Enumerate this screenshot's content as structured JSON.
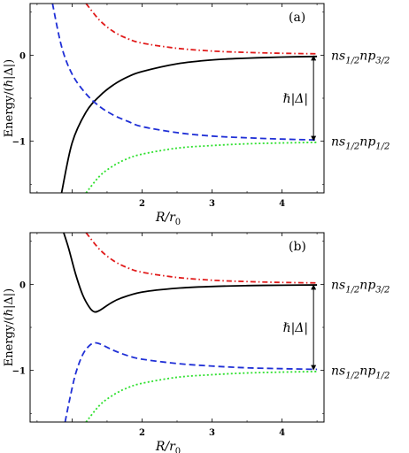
{
  "figure": {
    "ylabel": "Energy/(ℏ|Δ|)",
    "xlabel": "R/r",
    "xlabel_sub": "0"
  },
  "chart_data": [
    {
      "type": "line",
      "panel_label": "(a)",
      "xlim": [
        0.4,
        4.6
      ],
      "ylim": [
        -1.6,
        0.6
      ],
      "xticks": [
        1,
        2,
        3,
        4
      ],
      "xtick_labels": [
        "",
        "2",
        "3",
        "4"
      ],
      "yticks": [
        -1,
        0
      ],
      "ytick_labels": [
        "−1",
        "0"
      ],
      "xlabel": "R/r",
      "xlabel_sub": "0",
      "gap_label": "ℏ|Δ|",
      "level_labels": {
        "upper": {
          "base": "ns",
          "sub1": "1/2",
          "mid": "np",
          "sub2": "3/2"
        },
        "lower": {
          "base": "ns",
          "sub1": "1/2",
          "mid": "np",
          "sub2": "1/2"
        }
      },
      "series": [
        {
          "style": "solid",
          "color": "#000000",
          "x": [
            0.85,
            1.0,
            1.2,
            1.4,
            1.6,
            1.8,
            2.0,
            2.5,
            3.0,
            3.5,
            4.0,
            4.5
          ],
          "y": [
            -1.6,
            -1.02,
            -0.66,
            -0.47,
            -0.34,
            -0.25,
            -0.19,
            -0.1,
            -0.055,
            -0.035,
            -0.022,
            -0.015
          ]
        },
        {
          "style": "dashdot",
          "color": "#e11b1b",
          "x": [
            1.2,
            1.4,
            1.6,
            1.8,
            2.0,
            2.5,
            3.0,
            3.5,
            4.0,
            4.5
          ],
          "y": [
            0.6,
            0.4,
            0.27,
            0.19,
            0.14,
            0.08,
            0.048,
            0.032,
            0.022,
            0.016
          ]
        },
        {
          "style": "dashed",
          "color": "#1f2fd6",
          "x": [
            0.72,
            0.85,
            1.0,
            1.2,
            1.4,
            1.6,
            1.8,
            2.0,
            2.5,
            3.0,
            3.5,
            4.0,
            4.5
          ],
          "y": [
            0.6,
            0.1,
            -0.22,
            -0.45,
            -0.6,
            -0.7,
            -0.77,
            -0.83,
            -0.9,
            -0.94,
            -0.96,
            -0.975,
            -0.985
          ]
        },
        {
          "style": "dotted",
          "color": "#2fe02f",
          "x": [
            1.2,
            1.4,
            1.6,
            1.8,
            2.0,
            2.5,
            3.0,
            3.5,
            4.0,
            4.5
          ],
          "y": [
            -1.6,
            -1.4,
            -1.28,
            -1.2,
            -1.15,
            -1.08,
            -1.05,
            -1.03,
            -1.02,
            -1.013
          ]
        }
      ]
    },
    {
      "type": "line",
      "panel_label": "(b)",
      "xlim": [
        0.4,
        4.6
      ],
      "ylim": [
        -1.6,
        0.6
      ],
      "xticks": [
        1,
        2,
        3,
        4
      ],
      "xtick_labels": [
        "",
        "2",
        "3",
        "4"
      ],
      "yticks": [
        -1,
        0
      ],
      "ytick_labels": [
        "−1",
        "0"
      ],
      "xlabel": "R/r",
      "xlabel_sub": "0",
      "gap_label": "ℏ|Δ|",
      "level_labels": {
        "upper": {
          "base": "ns",
          "sub1": "1/2",
          "mid": "np",
          "sub2": "3/2"
        },
        "lower": {
          "base": "ns",
          "sub1": "1/2",
          "mid": "np",
          "sub2": "1/2"
        }
      },
      "series": [
        {
          "style": "solid",
          "color": "#000000",
          "x": [
            0.88,
            0.95,
            1.05,
            1.15,
            1.25,
            1.32,
            1.4,
            1.55,
            1.7,
            2.0,
            2.5,
            3.0,
            3.5,
            4.0,
            4.5
          ],
          "y": [
            0.6,
            0.42,
            0.12,
            -0.12,
            -0.27,
            -0.32,
            -0.3,
            -0.22,
            -0.16,
            -0.09,
            -0.045,
            -0.025,
            -0.015,
            -0.01,
            -0.007
          ]
        },
        {
          "style": "dashdot",
          "color": "#e11b1b",
          "x": [
            1.2,
            1.4,
            1.6,
            1.8,
            2.0,
            2.5,
            3.0,
            3.5,
            4.0,
            4.5
          ],
          "y": [
            0.6,
            0.4,
            0.27,
            0.19,
            0.14,
            0.08,
            0.048,
            0.032,
            0.022,
            0.016
          ]
        },
        {
          "style": "dashed",
          "color": "#1f2fd6",
          "x": [
            0.9,
            0.97,
            1.05,
            1.15,
            1.25,
            1.33,
            1.42,
            1.6,
            1.8,
            2.0,
            2.5,
            3.0,
            3.5,
            4.0,
            4.5
          ],
          "y": [
            -1.6,
            -1.32,
            -1.04,
            -0.82,
            -0.71,
            -0.68,
            -0.7,
            -0.77,
            -0.83,
            -0.87,
            -0.92,
            -0.95,
            -0.97,
            -0.98,
            -0.988
          ]
        },
        {
          "style": "dotted",
          "color": "#2fe02f",
          "x": [
            1.2,
            1.4,
            1.6,
            1.8,
            2.0,
            2.5,
            3.0,
            3.5,
            4.0,
            4.5
          ],
          "y": [
            -1.6,
            -1.4,
            -1.28,
            -1.2,
            -1.15,
            -1.08,
            -1.05,
            -1.03,
            -1.02,
            -1.013
          ]
        }
      ]
    }
  ]
}
